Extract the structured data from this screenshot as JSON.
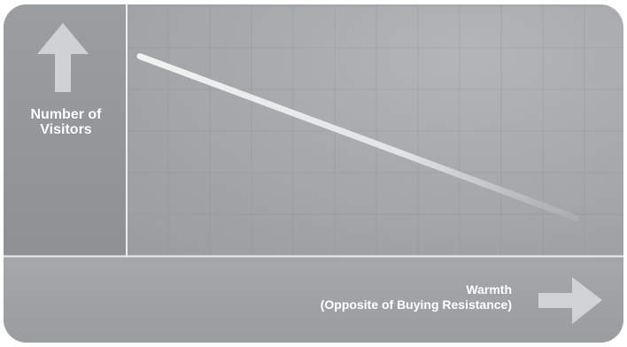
{
  "chart_data": {
    "type": "line",
    "title": "",
    "xlabel": "Warmth",
    "xlabel_sub": "(Opposite of Buying Resistance)",
    "ylabel": "Number of Visitors",
    "ylabel_lines": [
      "Number of",
      "Visitors"
    ],
    "x_ticks": [],
    "y_ticks": [],
    "xlim": [
      0,
      1
    ],
    "ylim": [
      0,
      1
    ],
    "grid": true,
    "series": [
      {
        "x": [
          0.0,
          1.0
        ],
        "values": [
          0.86,
          0.1
        ]
      }
    ]
  },
  "colors": {
    "panel": "#9ea1a4",
    "plot_area": "#a4a6a8",
    "axis_line": "#eceded",
    "trend_line": "#e2e3e4",
    "arrow": "#d6d7d8"
  },
  "icons": {
    "y_axis": "arrow-up-icon",
    "x_axis": "arrow-right-icon"
  }
}
